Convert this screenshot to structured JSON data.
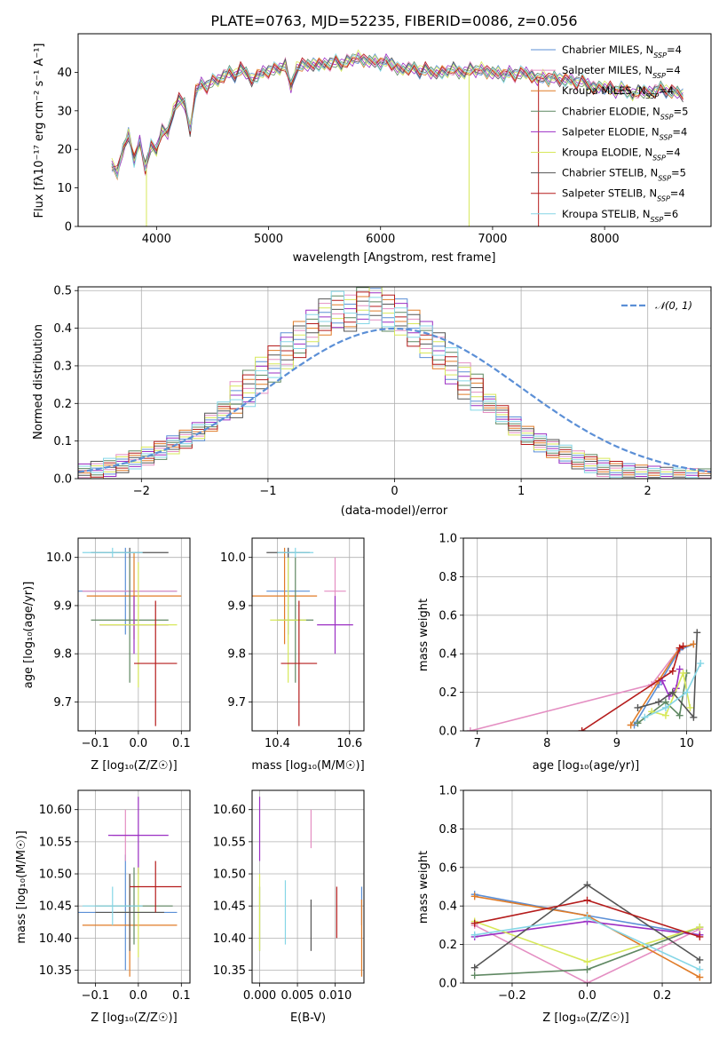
{
  "figure_title": "PLATE=0763, MJD=52235, FIBERID=0086, z=0.056",
  "series_colors": [
    "#5b8fd6",
    "#e48ec2",
    "#e07b27",
    "#5f8862",
    "#9b2fc4",
    "#d7e85a",
    "#555555",
    "#b51c1c",
    "#85d6e6"
  ],
  "chart_data": [
    {
      "type": "line",
      "title": "PLATE=0763, MJD=52235, FIBERID=0086, z=0.056",
      "xlabel": "wavelength [Angstrom, rest frame]",
      "ylabel": "Flux [fλ10⁻¹⁷ erg cm⁻² s⁻¹ A⁻¹]",
      "xlim": [
        3300,
        8950
      ],
      "ylim": [
        0,
        50
      ],
      "xticks": [
        "4000",
        "5000",
        "6000",
        "7000",
        "8000"
      ],
      "yticks": [
        "0",
        "10",
        "20",
        "30",
        "40"
      ],
      "legend_position": "top-right",
      "grid": false,
      "series": [
        {
          "name": "Chabrier MILES, N_SSP=4"
        },
        {
          "name": "Salpeter MILES, N_SSP=4"
        },
        {
          "name": "Kroupa MILES, N_SSP=4"
        },
        {
          "name": "Chabrier ELODIE, N_SSP=5"
        },
        {
          "name": "Salpeter ELODIE, N_SSP=4"
        },
        {
          "name": "Kroupa ELODIE, N_SSP=4"
        },
        {
          "name": "Chabrier STELIB, N_SSP=5"
        },
        {
          "name": "Salpeter STELIB, N_SSP=4"
        },
        {
          "name": "Kroupa STELIB, N_SSP=6"
        }
      ],
      "spectrum": {
        "x": [
          3600,
          3650,
          3700,
          3750,
          3800,
          3850,
          3900,
          3950,
          4000,
          4050,
          4100,
          4150,
          4200,
          4250,
          4300,
          4350,
          4400,
          4450,
          4500,
          4550,
          4600,
          4650,
          4700,
          4750,
          4800,
          4850,
          4900,
          4950,
          5000,
          5050,
          5100,
          5150,
          5200,
          5250,
          5300,
          5350,
          5400,
          5450,
          5500,
          5550,
          5600,
          5650,
          5700,
          5750,
          5800,
          5850,
          5900,
          5950,
          6000,
          6050,
          6100,
          6150,
          6200,
          6250,
          6300,
          6350,
          6400,
          6450,
          6500,
          6550,
          6600,
          6650,
          6700,
          6750,
          6800,
          6850,
          6900,
          6950,
          7000,
          7050,
          7100,
          7150,
          7200,
          7250,
          7300,
          7350,
          7400,
          7450,
          7500,
          7550,
          7600,
          7650,
          7700,
          7750,
          7800,
          7850,
          7900,
          7950,
          8000,
          8050,
          8100,
          8150,
          8200,
          8250,
          8300,
          8350,
          8400,
          8450,
          8500,
          8550,
          8600,
          8650,
          8700
        ],
        "y": [
          16,
          14,
          20,
          24,
          17,
          22,
          15,
          21,
          20,
          25,
          24,
          30,
          33,
          32,
          25,
          35,
          37,
          36,
          38,
          38,
          39,
          40,
          39,
          41,
          40,
          38,
          39,
          40,
          40,
          41,
          41,
          42,
          36,
          41,
          42,
          42,
          42,
          42,
          42,
          42,
          43,
          42,
          43,
          43,
          44,
          43,
          43,
          43,
          42,
          43,
          42,
          41,
          41,
          41,
          41,
          40,
          41,
          40,
          40,
          40,
          40,
          41,
          40,
          40,
          41,
          40,
          41,
          40,
          40,
          40,
          39,
          40,
          39,
          40,
          40,
          39,
          38,
          39,
          38,
          39,
          38,
          38,
          38,
          37,
          38,
          37,
          36,
          36,
          36,
          36,
          35,
          36,
          35,
          34,
          35,
          35,
          35,
          35,
          36,
          35,
          35,
          35,
          34
        ]
      }
    },
    {
      "type": "bar",
      "title": "",
      "xlabel": "(data-model)/error",
      "ylabel": "Normed distribution",
      "xlim": [
        -2.5,
        2.5
      ],
      "ylim": [
        0,
        0.51
      ],
      "xticks": [
        "−2",
        "−1",
        "0",
        "1",
        "2"
      ],
      "yticks": [
        "0.0",
        "0.1",
        "0.2",
        "0.3",
        "0.4",
        "0.5"
      ],
      "grid": true,
      "legend_position": "top-right",
      "legend": [
        "𝒩(0, 1)"
      ],
      "bin_width": 0.1,
      "histogram_values": [
        0.015,
        0.022,
        0.03,
        0.04,
        0.05,
        0.06,
        0.075,
        0.09,
        0.105,
        0.125,
        0.15,
        0.18,
        0.21,
        0.24,
        0.275,
        0.305,
        0.34,
        0.37,
        0.4,
        0.43,
        0.45,
        0.44,
        0.46,
        0.47,
        0.44,
        0.43,
        0.4,
        0.37,
        0.34,
        0.3,
        0.26,
        0.23,
        0.2,
        0.17,
        0.14,
        0.115,
        0.095,
        0.08,
        0.065,
        0.05,
        0.04,
        0.03,
        0.022,
        0.016,
        0.012,
        0.009,
        0.006,
        0.004,
        0.003,
        0.002
      ]
    },
    {
      "type": "scatter",
      "xlabel": "Z [log₁₀(Z/Z☉)]",
      "ylabel": "age [log₁₀(age/yr)]",
      "xlim": [
        -0.14,
        0.12
      ],
      "ylim": [
        9.64,
        10.04
      ],
      "xticks": [
        "−0.1",
        "0.0",
        "0.1"
      ],
      "yticks": [
        "9.7",
        "9.8",
        "9.9",
        "10.0"
      ],
      "grid": true,
      "points": [
        {
          "x": -0.03,
          "y": 9.93,
          "xerr": 0.12,
          "yerr": 0.09
        },
        {
          "x": -0.02,
          "y": 9.93,
          "xerr": 0.11,
          "yerr": 0.07
        },
        {
          "x": -0.01,
          "y": 9.92,
          "xerr": 0.11,
          "yerr": 0.09
        },
        {
          "x": -0.02,
          "y": 9.87,
          "xerr": 0.09,
          "yerr": 0.13
        },
        {
          "x": -0.01,
          "y": 9.86,
          "xerr": 0.08,
          "yerr": 0.06
        },
        {
          "x": 0.0,
          "y": 9.86,
          "xerr": 0.09,
          "yerr": 0.13
        },
        {
          "x": -0.02,
          "y": 10.01,
          "xerr": 0.09,
          "yerr": 0.01
        },
        {
          "x": 0.04,
          "y": 9.78,
          "xerr": 0.05,
          "yerr": 0.13
        },
        {
          "x": -0.06,
          "y": 10.01,
          "xerr": 0.07,
          "yerr": 0.01
        }
      ]
    },
    {
      "type": "scatter",
      "xlabel": "mass [log₁₀(M/M☉)]",
      "ylabel": "",
      "xlim": [
        10.33,
        10.64
      ],
      "ylim": [
        9.64,
        10.04
      ],
      "xticks": [
        "10.4",
        "10.6"
      ],
      "yticks": [
        "9.7",
        "9.8",
        "9.9",
        "10.0"
      ],
      "grid": true,
      "points": [
        {
          "x": 10.43,
          "y": 9.93,
          "xerr": 0.06,
          "yerr": 0.09
        },
        {
          "x": 10.56,
          "y": 9.93,
          "xerr": 0.03,
          "yerr": 0.07
        },
        {
          "x": 10.42,
          "y": 9.92,
          "xerr": 0.09,
          "yerr": 0.1
        },
        {
          "x": 10.45,
          "y": 9.87,
          "xerr": 0.05,
          "yerr": 0.13
        },
        {
          "x": 10.56,
          "y": 9.86,
          "xerr": 0.05,
          "yerr": 0.06
        },
        {
          "x": 10.43,
          "y": 9.87,
          "xerr": 0.05,
          "yerr": 0.13
        },
        {
          "x": 10.43,
          "y": 10.01,
          "xerr": 0.06,
          "yerr": 0.01
        },
        {
          "x": 10.46,
          "y": 9.78,
          "xerr": 0.05,
          "yerr": 0.13
        },
        {
          "x": 10.45,
          "y": 10.01,
          "xerr": 0.05,
          "yerr": 0.01
        }
      ]
    },
    {
      "type": "line",
      "xlabel": "age [log₁₀(age/yr)]",
      "ylabel": "mass weight",
      "xlim": [
        6.8,
        10.35
      ],
      "ylim": [
        0,
        1
      ],
      "xticks": [
        "7",
        "8",
        "9",
        "10"
      ],
      "yticks": [
        "0.0",
        "0.2",
        "0.4",
        "0.6",
        "0.8",
        "1.0"
      ],
      "grid": true,
      "series": [
        {
          "x": [
            9.25,
            9.6,
            9.9,
            10.1
          ],
          "values": [
            0.03,
            0.24,
            0.42,
            0.45
          ]
        },
        {
          "x": [
            6.9,
            9.5,
            9.9
          ],
          "values": [
            0.0,
            0.24,
            0.43
          ]
        },
        {
          "x": [
            9.2,
            9.6,
            9.9,
            10.1
          ],
          "values": [
            0.03,
            0.26,
            0.43,
            0.45
          ]
        },
        {
          "x": [
            9.3,
            9.7,
            9.9,
            10.0
          ],
          "values": [
            0.04,
            0.15,
            0.08,
            0.3
          ]
        },
        {
          "x": [
            9.65,
            9.75,
            9.85,
            9.9
          ],
          "values": [
            0.26,
            0.18,
            0.22,
            0.32
          ]
        },
        {
          "x": [
            9.5,
            9.7,
            9.95,
            10.05
          ],
          "values": [
            0.1,
            0.08,
            0.3,
            0.12
          ]
        },
        {
          "x": [
            9.3,
            9.6,
            9.8,
            10.1,
            10.15
          ],
          "values": [
            0.12,
            0.15,
            0.2,
            0.07,
            0.51
          ]
        },
        {
          "x": [
            8.5,
            9.8,
            9.9,
            9.95
          ],
          "values": [
            0.0,
            0.31,
            0.43,
            0.44
          ]
        },
        {
          "x": [
            9.4,
            9.7,
            10.0,
            10.2
          ],
          "values": [
            0.07,
            0.12,
            0.2,
            0.35
          ]
        }
      ]
    },
    {
      "type": "scatter",
      "xlabel": "Z [log₁₀(Z/Z☉)]",
      "ylabel": "mass [log₁₀(M/M☉)]",
      "xlim": [
        -0.14,
        0.12
      ],
      "ylim": [
        10.33,
        10.63
      ],
      "xticks": [
        "−0.1",
        "0.0",
        "0.1"
      ],
      "yticks": [
        "10.35",
        "10.40",
        "10.45",
        "10.50",
        "10.55",
        "10.60"
      ],
      "grid": true,
      "points": [
        {
          "x": -0.03,
          "y": 10.44,
          "xerr": 0.12,
          "yerr": 0.09
        },
        {
          "x": -0.03,
          "y": 10.56,
          "xerr": 0.03,
          "yerr": 0.04
        },
        {
          "x": -0.02,
          "y": 10.42,
          "xerr": 0.11,
          "yerr": 0.08
        },
        {
          "x": -0.01,
          "y": 10.45,
          "xerr": 0.09,
          "yerr": 0.06
        },
        {
          "x": 0.0,
          "y": 10.56,
          "xerr": 0.07,
          "yerr": 0.06
        },
        {
          "x": 0.0,
          "y": 10.44,
          "xerr": 0.05,
          "yerr": 0.07
        },
        {
          "x": -0.02,
          "y": 10.44,
          "xerr": 0.08,
          "yerr": 0.06
        },
        {
          "x": 0.04,
          "y": 10.48,
          "xerr": 0.06,
          "yerr": 0.04
        },
        {
          "x": -0.06,
          "y": 10.45,
          "xerr": 0.07,
          "yerr": 0.03
        }
      ]
    },
    {
      "type": "scatter",
      "xlabel": "E(B-V)",
      "ylabel": "",
      "xlim": [
        -0.001,
        0.0138
      ],
      "ylim": [
        10.33,
        10.63
      ],
      "xticks": [
        "0.000",
        "0.005",
        "0.010"
      ],
      "yticks": [
        "10.35",
        "10.40",
        "10.45",
        "10.50",
        "10.55",
        "10.60"
      ],
      "grid": true,
      "points": [
        {
          "x": 0.0135,
          "y": 10.45,
          "yerr": 0.03
        },
        {
          "x": 0.0068,
          "y": 10.57,
          "yerr": 0.03
        },
        {
          "x": 0.0135,
          "y": 10.4,
          "yerr": 0.06
        },
        {
          "x": 0.0,
          "y": 10.43,
          "yerr": 0.05
        },
        {
          "x": 0.0,
          "y": 10.57,
          "yerr": 0.05
        },
        {
          "x": 0.0,
          "y": 10.44,
          "yerr": 0.06
        },
        {
          "x": 0.0068,
          "y": 10.42,
          "yerr": 0.04
        },
        {
          "x": 0.0102,
          "y": 10.44,
          "yerr": 0.04
        },
        {
          "x": 0.0034,
          "y": 10.44,
          "yerr": 0.05
        }
      ]
    },
    {
      "type": "line",
      "xlabel": "Z [log₁₀(Z/Z☉)]",
      "ylabel": "mass weight",
      "xlim": [
        -0.33,
        0.33
      ],
      "ylim": [
        0,
        1
      ],
      "xticks": [
        "−0.2",
        "0.0",
        "0.2"
      ],
      "yticks": [
        "0.0",
        "0.2",
        "0.4",
        "0.6",
        "0.8",
        "1.0"
      ],
      "grid": true,
      "series": [
        {
          "x": [
            -0.3,
            0.0,
            0.3
          ],
          "values": [
            0.46,
            0.35,
            0.25
          ]
        },
        {
          "x": [
            -0.3,
            0.0,
            0.3
          ],
          "values": [
            0.3,
            0.0,
            0.28
          ]
        },
        {
          "x": [
            -0.3,
            0.0,
            0.3
          ],
          "values": [
            0.45,
            0.35,
            0.03
          ]
        },
        {
          "x": [
            -0.3,
            0.0,
            0.3
          ],
          "values": [
            0.04,
            0.07,
            0.29
          ]
        },
        {
          "x": [
            -0.3,
            0.0,
            0.3
          ],
          "values": [
            0.24,
            0.32,
            0.25
          ]
        },
        {
          "x": [
            -0.3,
            0.0,
            0.3
          ],
          "values": [
            0.32,
            0.11,
            0.29
          ]
        },
        {
          "x": [
            -0.3,
            0.0,
            0.3
          ],
          "values": [
            0.08,
            0.51,
            0.12
          ]
        },
        {
          "x": [
            -0.3,
            0.0,
            0.3
          ],
          "values": [
            0.31,
            0.43,
            0.24
          ]
        },
        {
          "x": [
            -0.3,
            0.0,
            0.3
          ],
          "values": [
            0.25,
            0.34,
            0.07
          ]
        }
      ]
    }
  ]
}
